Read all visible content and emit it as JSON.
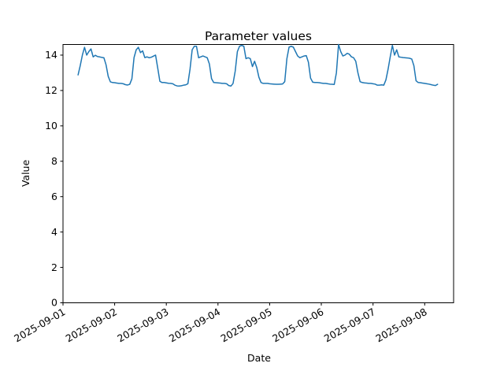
{
  "chart_data": {
    "type": "line",
    "title": "Parameter values",
    "xlabel": "Date",
    "ylabel": "Value",
    "x_tick_labels": [
      "2025-09-01",
      "2025-09-02",
      "2025-09-03",
      "2025-09-04",
      "2025-09-05",
      "2025-09-06",
      "2025-09-07",
      "2025-09-08"
    ],
    "x_tick_rotation_deg": 30,
    "y_ticks": [
      0,
      2,
      4,
      6,
      8,
      10,
      12,
      14
    ],
    "ylim": [
      0,
      14.6
    ],
    "xlim_days": [
      0,
      7.56
    ],
    "grid": false,
    "legend": "none",
    "line_color": "#1f77b4",
    "frame_color": "#000000",
    "background_color": "#ffffff",
    "series": [
      {
        "name": "Parameter",
        "start": "2025-09-01 07:00",
        "start_hour": 7,
        "interval_hours": 1,
        "days": [
          [
            12.88,
            13.4,
            14.0,
            14.44,
            14.0,
            14.2,
            14.35,
            13.9,
            13.99,
            13.92,
            13.9,
            13.87,
            13.85,
            13.45,
            12.8,
            12.49,
            12.45,
            12.44,
            12.42,
            12.4,
            12.4,
            12.38,
            12.33,
            12.31
          ],
          [
            12.35,
            12.66,
            13.86,
            14.3,
            14.44,
            14.14,
            14.24,
            13.86,
            13.9,
            13.85,
            13.88,
            13.94,
            14.0,
            13.27,
            12.52,
            12.45,
            12.45,
            12.43,
            12.41,
            12.4,
            12.38,
            12.3,
            12.26,
            12.25
          ],
          [
            12.27,
            12.3,
            12.32,
            12.38,
            13.2,
            14.3,
            14.5,
            14.5,
            13.85,
            13.9,
            13.95,
            13.9,
            13.85,
            13.5,
            12.67,
            12.45,
            12.44,
            12.43,
            12.42,
            12.4,
            12.4,
            12.38,
            12.28,
            12.25
          ],
          [
            12.4,
            13.1,
            14.2,
            14.5,
            14.55,
            14.5,
            13.8,
            13.85,
            13.8,
            13.35,
            13.65,
            13.3,
            12.75,
            12.45,
            12.4,
            12.4,
            12.4,
            12.38,
            12.37,
            12.36,
            12.35,
            12.35,
            12.36,
            12.37
          ],
          [
            12.5,
            13.8,
            14.45,
            14.5,
            14.45,
            14.2,
            13.95,
            13.85,
            13.9,
            13.95,
            13.97,
            13.6,
            12.7,
            12.47,
            12.45,
            12.45,
            12.44,
            12.42,
            12.4,
            12.4,
            12.38,
            12.36,
            12.35,
            12.34
          ],
          [
            13.0,
            14.6,
            14.2,
            13.95,
            14.0,
            14.1,
            14.05,
            13.9,
            13.85,
            13.65,
            13.0,
            12.5,
            12.45,
            12.43,
            12.42,
            12.4,
            12.4,
            12.38,
            12.36,
            12.3,
            12.3,
            12.32,
            12.3,
            12.6
          ],
          [
            13.2,
            13.9,
            14.55,
            14.0,
            14.3,
            13.9,
            13.88,
            13.86,
            13.85,
            13.84,
            13.82,
            13.78,
            13.4,
            12.55,
            12.45,
            12.44,
            12.42,
            12.4,
            12.38,
            12.36,
            12.33,
            12.3,
            12.28,
            12.35
          ]
        ]
      }
    ]
  }
}
